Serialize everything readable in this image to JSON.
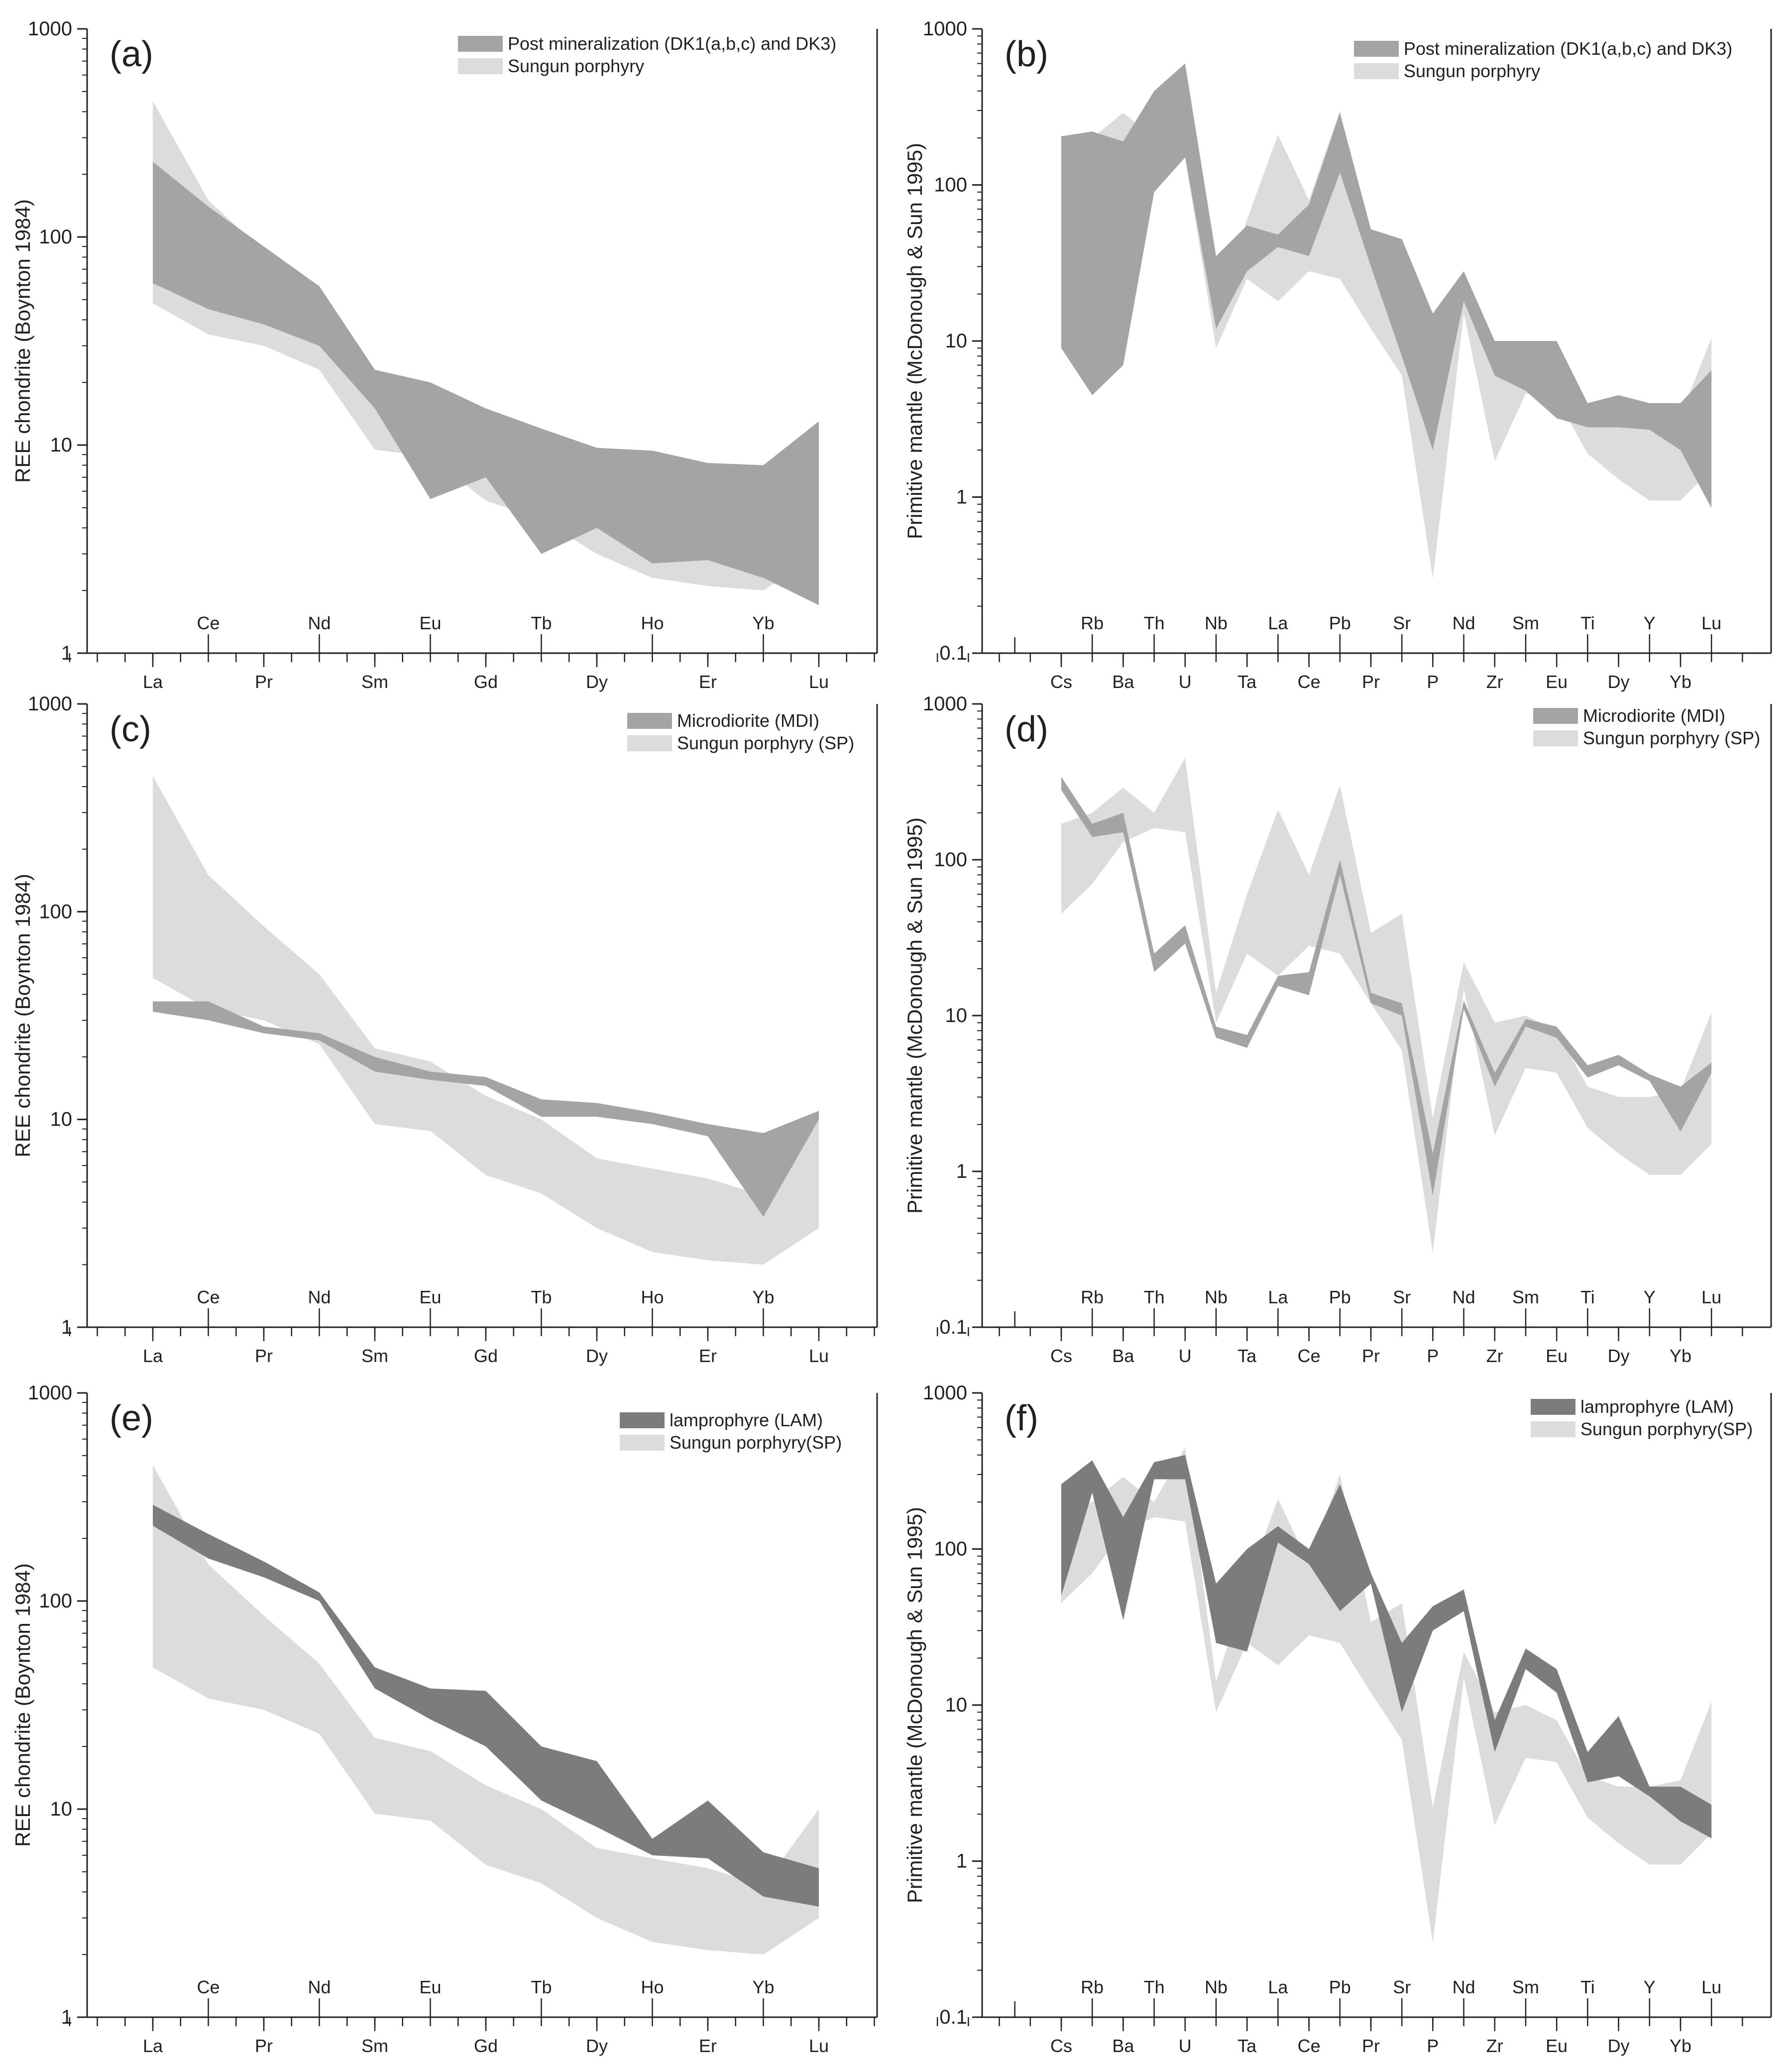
{
  "figure": {
    "panel_count": 6
  },
  "colors": {
    "post": "#a4a4a4",
    "sp": "#dcdcdc",
    "dark": "#7c7c7c",
    "axis": "#231f20"
  },
  "chart_data": [
    {
      "panel": "(a)",
      "type": "area",
      "scale": "log",
      "ylabel": "REE chondrite (Boynton 1984)",
      "ylim": [
        1,
        1000
      ],
      "yticks": [
        "1",
        "10",
        "100",
        "1000"
      ],
      "categories": [
        "La",
        "Ce",
        "Pr",
        "Nd",
        "Sm",
        "Eu",
        "Gd",
        "Tb",
        "Dy",
        "Ho",
        "Er",
        "Yb",
        "Lu"
      ],
      "series": [
        {
          "name": "Sungun porphyry",
          "color": "#dcdcdc",
          "upper": [
            450,
            150,
            85,
            50,
            22,
            19,
            13,
            10,
            6.5,
            5.8,
            5.2,
            4.3,
            10
          ],
          "lower": [
            48,
            34,
            30,
            23,
            9.5,
            8.8,
            5.4,
            4.4,
            3.0,
            2.3,
            2.1,
            2.0,
            3.0
          ]
        },
        {
          "name": "Post mineralization (DK1(a,b,c) and DK3)",
          "color": "#a4a4a4",
          "upper": [
            230,
            140,
            90,
            58,
            23,
            20,
            15,
            12,
            9.7,
            9.4,
            8.2,
            8.0,
            13
          ],
          "lower": [
            60,
            45,
            38,
            30,
            15,
            5.5,
            7.0,
            3.0,
            4.0,
            2.7,
            2.8,
            2.3,
            1.7
          ]
        }
      ]
    },
    {
      "panel": "(b)",
      "type": "area",
      "scale": "log",
      "ylabel": "Primitive mantle (McDonough & Sun 1995)",
      "ylim": [
        0.1,
        1000
      ],
      "yticks": [
        "0.1",
        "1",
        "10",
        "100",
        "1000"
      ],
      "categories": [
        "Cs",
        "Rb",
        "Ba",
        "Th",
        "U",
        "Nb",
        "Ta",
        "La",
        "Ce",
        "Pb",
        "Pr",
        "Sr",
        "P",
        "Nd",
        "Zr",
        "Sm",
        "Eu",
        "Ti",
        "Dy",
        "Y",
        "Yb",
        "Lu"
      ],
      "series": [
        {
          "name": "Sungun porphyry",
          "color": "#dcdcdc",
          "upper": [
            170,
            200,
            290,
            200,
            450,
            14,
            60,
            210,
            80,
            300,
            34,
            45,
            2.2,
            22,
            9,
            10,
            8,
            3.5,
            3,
            3,
            3.3,
            10.5
          ],
          "lower": [
            45,
            70,
            130,
            160,
            150,
            9,
            25,
            18,
            28,
            25,
            12,
            6,
            0.3,
            15,
            1.7,
            4.6,
            4.3,
            1.9,
            1.3,
            0.95,
            0.95,
            1.5
          ]
        },
        {
          "name": "Post mineralization (DK1(a,b,c) and DK3)",
          "color": "#a4a4a4",
          "upper": [
            205,
            220,
            190,
            400,
            600,
            35,
            55,
            48,
            75,
            290,
            52,
            45,
            15,
            28,
            10,
            10,
            10,
            4,
            4.5,
            4,
            4,
            6.5
          ],
          "lower": [
            9,
            4.5,
            7,
            90,
            150,
            12,
            28,
            40,
            35,
            120,
            30,
            8,
            2,
            18,
            6,
            4.8,
            3.2,
            2.8,
            2.8,
            2.7,
            2,
            0.85
          ]
        }
      ]
    },
    {
      "panel": "(c)",
      "type": "area",
      "scale": "log",
      "ylabel": "REE chondrite (Boynton 1984)",
      "ylim": [
        1,
        1000
      ],
      "yticks": [
        "1",
        "10",
        "100",
        "1000"
      ],
      "categories": [
        "La",
        "Ce",
        "Pr",
        "Nd",
        "Sm",
        "Eu",
        "Gd",
        "Tb",
        "Dy",
        "Ho",
        "Er",
        "Yb",
        "Lu"
      ],
      "series": [
        {
          "name": "Sungun porphyry (SP)",
          "color": "#dcdcdc",
          "upper": [
            450,
            150,
            85,
            50,
            22,
            19,
            13,
            10,
            6.5,
            5.8,
            5.2,
            4.3,
            10
          ],
          "lower": [
            48,
            34,
            30,
            23,
            9.5,
            8.8,
            5.4,
            4.4,
            3.0,
            2.3,
            2.1,
            2.0,
            3.0
          ]
        },
        {
          "name": "Microdiorite (MDI)",
          "color": "#a4a4a4",
          "upper": [
            37,
            37,
            28,
            26,
            20,
            17,
            16,
            12.5,
            12,
            10.8,
            9.5,
            8.6,
            11
          ],
          "lower": [
            33,
            30,
            26,
            24,
            17,
            15.5,
            14.5,
            10.3,
            10.3,
            9.5,
            8.3,
            3.4,
            10
          ]
        }
      ]
    },
    {
      "panel": "(d)",
      "type": "area",
      "scale": "log",
      "ylabel": "Primitive mantle (McDonough & Sun 1995)",
      "ylim": [
        0.1,
        1000
      ],
      "yticks": [
        "0.1",
        "1",
        "10",
        "100",
        "1000"
      ],
      "categories": [
        "Cs",
        "Rb",
        "Ba",
        "Th",
        "U",
        "Nb",
        "Ta",
        "La",
        "Ce",
        "Pb",
        "Pr",
        "Sr",
        "P",
        "Nd",
        "Zr",
        "Sm",
        "Eu",
        "Ti",
        "Dy",
        "Y",
        "Yb",
        "Lu"
      ],
      "series": [
        {
          "name": "Sungun porphyry (SP)",
          "color": "#dcdcdc",
          "upper": [
            170,
            200,
            290,
            200,
            450,
            14,
            60,
            210,
            80,
            300,
            34,
            45,
            2.2,
            22,
            9,
            10,
            8,
            3.5,
            3,
            3,
            3.3,
            10.5
          ],
          "lower": [
            45,
            70,
            130,
            160,
            150,
            9,
            25,
            18,
            28,
            25,
            12,
            6,
            0.3,
            15,
            1.7,
            4.6,
            4.3,
            1.9,
            1.3,
            0.95,
            0.95,
            1.5
          ]
        },
        {
          "name": "Microdiorite  (MDI)",
          "color": "#a4a4a4",
          "upper": [
            340,
            170,
            200,
            25,
            38,
            8.5,
            7.5,
            18,
            19,
            100,
            14,
            12,
            1.3,
            12.5,
            4.3,
            9.5,
            8.5,
            4.8,
            5.6,
            4.2,
            3.5,
            5
          ],
          "lower": [
            280,
            140,
            150,
            19,
            29,
            7.2,
            6.2,
            15.5,
            13.5,
            80,
            12,
            10,
            0.7,
            11,
            3.5,
            8.5,
            7.2,
            4,
            4.8,
            3.8,
            1.8,
            4.3
          ]
        }
      ]
    },
    {
      "panel": "(e)",
      "type": "area",
      "scale": "log",
      "ylabel": "REE chondrite (Boynton 1984)",
      "ylim": [
        1,
        1000
      ],
      "yticks": [
        "1",
        "10",
        "100",
        "1000"
      ],
      "categories": [
        "La",
        "Ce",
        "Pr",
        "Nd",
        "Sm",
        "Eu",
        "Gd",
        "Tb",
        "Dy",
        "Ho",
        "Er",
        "Yb",
        "Lu"
      ],
      "series": [
        {
          "name": "Sungun porphyry(SP)",
          "color": "#dcdcdc",
          "upper": [
            450,
            150,
            85,
            50,
            22,
            19,
            13,
            10,
            6.5,
            5.8,
            5.2,
            4.3,
            10
          ],
          "lower": [
            48,
            34,
            30,
            23,
            9.5,
            8.8,
            5.4,
            4.4,
            3.0,
            2.3,
            2.1,
            2.0,
            3.0
          ]
        },
        {
          "name": "lamprophyre (LAM)",
          "color": "#7c7c7c",
          "upper": [
            290,
            210,
            155,
            110,
            48,
            38,
            37,
            20,
            17,
            7.2,
            11,
            6.2,
            5.2
          ],
          "lower": [
            230,
            160,
            130,
            100,
            38,
            27,
            20,
            11,
            8.2,
            6.0,
            5.8,
            3.8,
            3.4
          ]
        }
      ]
    },
    {
      "panel": "(f)",
      "type": "area",
      "scale": "log",
      "ylabel": "Primitive mantle (McDonough & Sun 1995)",
      "ylim": [
        0.1,
        1000
      ],
      "yticks": [
        "0.1",
        "1",
        "10",
        "100",
        "1000"
      ],
      "categories": [
        "Cs",
        "Rb",
        "Ba",
        "Th",
        "U",
        "Nb",
        "Ta",
        "La",
        "Ce",
        "Pb",
        "Pr",
        "Sr",
        "P",
        "Nd",
        "Zr",
        "Sm",
        "Eu",
        "Ti",
        "Dy",
        "Y",
        "Yb",
        "Lu"
      ],
      "series": [
        {
          "name": "Sungun porphyry(SP)",
          "color": "#dcdcdc",
          "upper": [
            170,
            200,
            290,
            200,
            450,
            14,
            60,
            210,
            80,
            300,
            34,
            45,
            2.2,
            22,
            9,
            10,
            8,
            3.5,
            3,
            3,
            3.3,
            10.5
          ],
          "lower": [
            45,
            70,
            130,
            160,
            150,
            9,
            25,
            18,
            28,
            25,
            12,
            6,
            0.3,
            15,
            1.7,
            4.6,
            4.3,
            1.9,
            1.3,
            0.95,
            0.95,
            1.5
          ]
        },
        {
          "name": "lamprophyre (LAM)",
          "color": "#7c7c7c",
          "upper": [
            260,
            370,
            160,
            360,
            400,
            60,
            100,
            140,
            100,
            260,
            70,
            25,
            43,
            55,
            8,
            23,
            17,
            5,
            8.5,
            3,
            3,
            2.3
          ],
          "lower": [
            50,
            230,
            35,
            280,
            280,
            25,
            22,
            110,
            80,
            40,
            60,
            9,
            30,
            40,
            5,
            17,
            12,
            3.2,
            3.5,
            2.6,
            1.8,
            1.4
          ]
        }
      ]
    }
  ]
}
